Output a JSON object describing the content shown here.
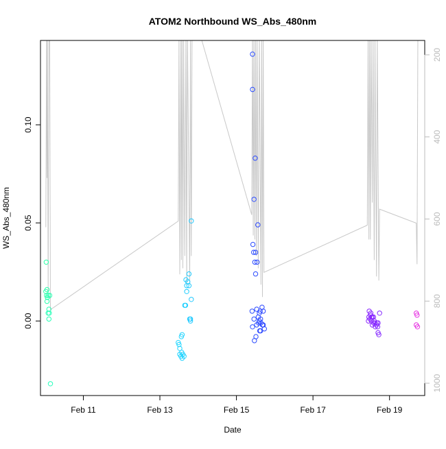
{
  "chart_data": {
    "type": "scatter",
    "title": "ATOM2 Northbound WS_Abs_480nm",
    "xlabel": "Date",
    "ylabel": "WS_Abs_480nm",
    "x_unit": "days from Feb 10 00:00",
    "xlim": [
      9.88,
      19.92
    ],
    "ylim": [
      -0.038,
      0.143
    ],
    "x_ticks": [
      {
        "value": 11,
        "label": "Feb 11"
      },
      {
        "value": 13,
        "label": "Feb 13"
      },
      {
        "value": 15,
        "label": "Feb 15"
      },
      {
        "value": 17,
        "label": "Feb 17"
      },
      {
        "value": 19,
        "label": "Feb 19"
      }
    ],
    "y_ticks": [
      {
        "value": 0.0,
        "label": "0.00"
      },
      {
        "value": 0.05,
        "label": "0.05"
      },
      {
        "value": 0.1,
        "label": "0.10"
      }
    ],
    "y2": {
      "reversed": true,
      "lim": [
        165,
        1030
      ],
      "ticks": [
        200,
        400,
        600,
        800,
        1000
      ],
      "color": "#bbbbbb"
    },
    "grid": false,
    "legend": "none",
    "series": [
      {
        "name": "WS_Abs_480nm",
        "kind": "points",
        "points": [
          [
            10.03,
            0.03,
            "#2effa8"
          ],
          [
            10.05,
            0.016,
            "#2bffac"
          ],
          [
            10.02,
            0.015,
            "#2cffaa"
          ],
          [
            10.04,
            0.013,
            "#2bffac"
          ],
          [
            10.06,
            0.012,
            "#2affae"
          ],
          [
            10.08,
            0.013,
            "#29ffb0"
          ],
          [
            10.12,
            0.013,
            "#28ffb2"
          ],
          [
            10.05,
            0.01,
            "#2affae"
          ],
          [
            10.1,
            0.006,
            "#27ffb4"
          ],
          [
            10.08,
            0.004,
            "#26ffb6"
          ],
          [
            10.11,
            0.004,
            "#25ffb8"
          ],
          [
            10.1,
            0.001,
            "#26ffb6"
          ],
          [
            10.14,
            -0.032,
            "#24ffbb"
          ],
          [
            13.82,
            0.051,
            "#1ec8ff"
          ],
          [
            13.76,
            0.024,
            "#1ecaff"
          ],
          [
            13.68,
            0.021,
            "#1fceff"
          ],
          [
            13.73,
            0.02,
            "#1fccff"
          ],
          [
            13.7,
            0.018,
            "#1fcdff"
          ],
          [
            13.76,
            0.018,
            "#1ecaff"
          ],
          [
            13.7,
            0.015,
            "#1fcdff"
          ],
          [
            13.82,
            0.011,
            "#1ec8ff"
          ],
          [
            13.65,
            0.008,
            "#20d0ff"
          ],
          [
            13.67,
            0.008,
            "#20cfff"
          ],
          [
            13.8,
            0.001,
            "#1ec9ff"
          ],
          [
            13.78,
            0.001,
            "#1ec9ff"
          ],
          [
            13.8,
            0.0,
            "#1ec9ff"
          ],
          [
            13.58,
            -0.007,
            "#21d3ff"
          ],
          [
            13.56,
            -0.008,
            "#21d4ff"
          ],
          [
            13.48,
            -0.011,
            "#22d7ff"
          ],
          [
            13.5,
            -0.012,
            "#22d6ff"
          ],
          [
            13.52,
            -0.014,
            "#21d5ff"
          ],
          [
            13.57,
            -0.016,
            "#21d3ff"
          ],
          [
            13.52,
            -0.017,
            "#21d5ff"
          ],
          [
            13.6,
            -0.017,
            "#20d2ff"
          ],
          [
            13.55,
            -0.018,
            "#21d4ff"
          ],
          [
            13.63,
            -0.018,
            "#20d1ff"
          ],
          [
            13.58,
            -0.019,
            "#20d2ff"
          ],
          [
            15.42,
            0.136,
            "#2b4dff"
          ],
          [
            15.42,
            0.118,
            "#2b4dff"
          ],
          [
            15.49,
            0.083,
            "#2a4aff"
          ],
          [
            15.46,
            0.062,
            "#2a4bff"
          ],
          [
            15.56,
            0.049,
            "#2a48ff"
          ],
          [
            15.43,
            0.039,
            "#2b4cff"
          ],
          [
            15.45,
            0.035,
            "#2a4bff"
          ],
          [
            15.5,
            0.035,
            "#2a4aff"
          ],
          [
            15.48,
            0.03,
            "#2a4aff"
          ],
          [
            15.54,
            0.03,
            "#2a49ff"
          ],
          [
            15.5,
            0.024,
            "#2a4aff"
          ],
          [
            15.67,
            0.007,
            "#2945ff"
          ],
          [
            15.53,
            0.006,
            "#2a49ff"
          ],
          [
            15.41,
            0.005,
            "#2b4dff"
          ],
          [
            15.62,
            0.005,
            "#2946ff"
          ],
          [
            15.7,
            0.005,
            "#2944ff"
          ],
          [
            15.6,
            0.004,
            "#2947ff"
          ],
          [
            15.57,
            0.002,
            "#2948ff"
          ],
          [
            15.63,
            0.001,
            "#2946ff"
          ],
          [
            15.46,
            0.001,
            "#2a4bff"
          ],
          [
            15.6,
            0.0,
            "#2947ff"
          ],
          [
            15.58,
            -0.001,
            "#2948ff"
          ],
          [
            15.64,
            -0.001,
            "#2946ff"
          ],
          [
            15.68,
            -0.002,
            "#2945ff"
          ],
          [
            15.53,
            -0.002,
            "#2a49ff"
          ],
          [
            15.7,
            -0.002,
            "#2944ff"
          ],
          [
            15.42,
            -0.003,
            "#2b4dff"
          ],
          [
            15.73,
            -0.004,
            "#2843ff"
          ],
          [
            15.61,
            -0.005,
            "#2946ff"
          ],
          [
            15.63,
            -0.005,
            "#2946ff"
          ],
          [
            15.51,
            -0.008,
            "#2a4aff"
          ],
          [
            15.47,
            -0.01,
            "#2a4bff"
          ],
          [
            18.47,
            0.005,
            "#8a25ff"
          ],
          [
            18.51,
            0.004,
            "#8926ff"
          ],
          [
            18.5,
            0.003,
            "#8926ff"
          ],
          [
            18.53,
            0.002,
            "#8826ff"
          ],
          [
            18.46,
            0.002,
            "#8a25ff"
          ],
          [
            18.55,
            0.002,
            "#8826ff"
          ],
          [
            18.58,
            0.002,
            "#8727ff"
          ],
          [
            18.74,
            0.004,
            "#8428ff"
          ],
          [
            18.49,
            0.001,
            "#8926ff"
          ],
          [
            18.53,
            0.0,
            "#8826ff"
          ],
          [
            18.6,
            0.0,
            "#8727ff"
          ],
          [
            18.45,
            0.0,
            "#8a25ff"
          ],
          [
            18.58,
            -0.001,
            "#8727ff"
          ],
          [
            18.62,
            -0.001,
            "#8627ff"
          ],
          [
            18.67,
            -0.001,
            "#8528ff"
          ],
          [
            18.7,
            -0.001,
            "#8528ff"
          ],
          [
            18.55,
            -0.002,
            "#8826ff"
          ],
          [
            18.66,
            -0.002,
            "#8528ff"
          ],
          [
            18.63,
            -0.003,
            "#8627ff"
          ],
          [
            18.69,
            -0.003,
            "#8528ff"
          ],
          [
            18.7,
            -0.006,
            "#8528ff"
          ],
          [
            18.72,
            -0.007,
            "#8428ff"
          ],
          [
            19.7,
            0.004,
            "#e62ee0"
          ],
          [
            19.72,
            0.003,
            "#e52ee2"
          ],
          [
            19.7,
            -0.002,
            "#e62ee0"
          ],
          [
            19.73,
            -0.003,
            "#e52ee2"
          ]
        ]
      },
      {
        "name": "secondary",
        "kind": "line",
        "axis": "y2",
        "segments": [
          [
            [
              10.02,
              620
            ],
            [
              10.04,
              150
            ],
            [
              10.05,
              500
            ],
            [
              10.06,
              150
            ],
            [
              10.08,
              780
            ],
            [
              10.1,
              150
            ],
            [
              10.12,
              150
            ],
            [
              10.14,
              821
            ],
            [
              13.48,
              605
            ],
            [
              13.5,
              150
            ],
            [
              13.52,
              735
            ],
            [
              13.55,
              150
            ],
            [
              13.56,
              700
            ],
            [
              13.58,
              150
            ],
            [
              13.6,
              720
            ],
            [
              13.62,
              150
            ],
            [
              13.65,
              690
            ],
            [
              13.68,
              150
            ],
            [
              13.7,
              760
            ],
            [
              13.72,
              150
            ],
            [
              13.78,
              760
            ],
            [
              13.8,
              150
            ],
            [
              13.82,
              690
            ],
            [
              13.84,
              150
            ]
          ],
          [
            [
              14.05,
              150
            ],
            [
              15.4,
              590
            ],
            [
              15.42,
              150
            ],
            [
              15.44,
              640
            ],
            [
              15.46,
              150
            ],
            [
              15.48,
              650
            ],
            [
              15.5,
              150
            ],
            [
              15.52,
              690
            ],
            [
              15.54,
              150
            ],
            [
              15.57,
              720
            ],
            [
              15.6,
              150
            ],
            [
              15.64,
              760
            ],
            [
              15.66,
              150
            ],
            [
              15.68,
              790
            ],
            [
              15.7,
              150
            ],
            [
              15.72,
              730
            ],
            [
              18.42,
              615
            ],
            [
              18.44,
              150
            ],
            [
              18.46,
              650
            ],
            [
              18.48,
              150
            ],
            [
              18.5,
              650
            ],
            [
              18.52,
              150
            ],
            [
              18.55,
              560
            ],
            [
              18.57,
              150
            ],
            [
              18.6,
              700
            ],
            [
              18.62,
              150
            ],
            [
              18.66,
              740
            ],
            [
              18.68,
              150
            ],
            [
              18.72,
              750
            ],
            [
              18.74,
              576
            ],
            [
              19.7,
              610
            ],
            [
              19.72,
              710
            ],
            [
              19.74,
              150
            ]
          ]
        ]
      }
    ]
  }
}
